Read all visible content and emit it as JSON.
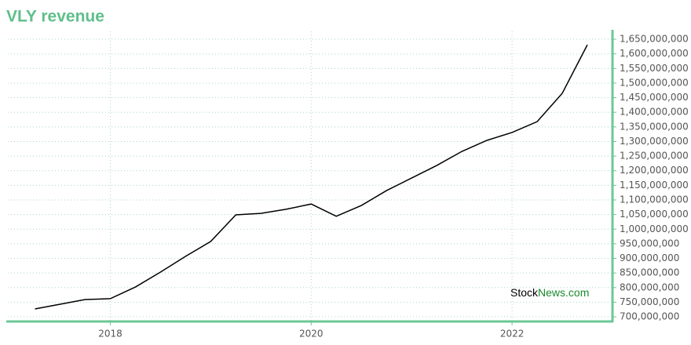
{
  "chart_data": {
    "type": "line",
    "title": "VLY revenue",
    "watermark": {
      "part1": "Stock",
      "part2": "News.com"
    },
    "x": [
      2017.25,
      2017.5,
      2017.75,
      2018,
      2018.25,
      2018.5,
      2018.75,
      2019,
      2019.25,
      2019.5,
      2019.75,
      2020,
      2020.25,
      2020.5,
      2020.75,
      2021,
      2021.25,
      2021.5,
      2021.75,
      2022,
      2022.25,
      2022.5,
      2022.75
    ],
    "series": [
      {
        "color": "#000000",
        "values": [
          727000000,
          743000000,
          759000000,
          762000000,
          802000000,
          853000000,
          907000000,
          958000000,
          1049000000,
          1054000000,
          1068000000,
          1086000000,
          1044000000,
          1081000000,
          1132000000,
          1175000000,
          1218000000,
          1266000000,
          1304000000,
          1331000000,
          1368000000,
          1465000000,
          1631000000
        ]
      }
    ],
    "xlim": [
      2016.98,
      2023.0
    ],
    "xticks": [
      2018,
      2020,
      2022
    ],
    "ylim": [
      684000000,
      1677000000
    ],
    "yticks": [
      {
        "value": 700000000,
        "label": "700,000,000"
      },
      {
        "value": 750000000,
        "label": "750,000,000"
      },
      {
        "value": 800000000,
        "label": "800,000,000"
      },
      {
        "value": 850000000,
        "label": "850,000,000"
      },
      {
        "value": 900000000,
        "label": "900,000,000"
      },
      {
        "value": 950000000,
        "label": "950,000,000"
      },
      {
        "value": 1000000000,
        "label": "1,000,000,000"
      },
      {
        "value": 1050000000,
        "label": "1,050,000,000"
      },
      {
        "value": 1100000000,
        "label": "1,100,000,000"
      },
      {
        "value": 1150000000,
        "label": "1,150,000,000"
      },
      {
        "value": 1200000000,
        "label": "1,200,000,000"
      },
      {
        "value": 1250000000,
        "label": "1,250,000,000"
      },
      {
        "value": 1300000000,
        "label": "1,300,000,000"
      },
      {
        "value": 1350000000,
        "label": "1,350,000,000"
      },
      {
        "value": 1400000000,
        "label": "1,400,000,000"
      },
      {
        "value": 1450000000,
        "label": "1,450,000,000"
      },
      {
        "value": 1500000000,
        "label": "1,500,000,000"
      },
      {
        "value": 1550000000,
        "label": "1,550,000,000"
      },
      {
        "value": 1600000000,
        "label": "1,600,000,000"
      },
      {
        "value": 1650000000,
        "label": "1,650,000,000"
      }
    ],
    "grid": true
  }
}
